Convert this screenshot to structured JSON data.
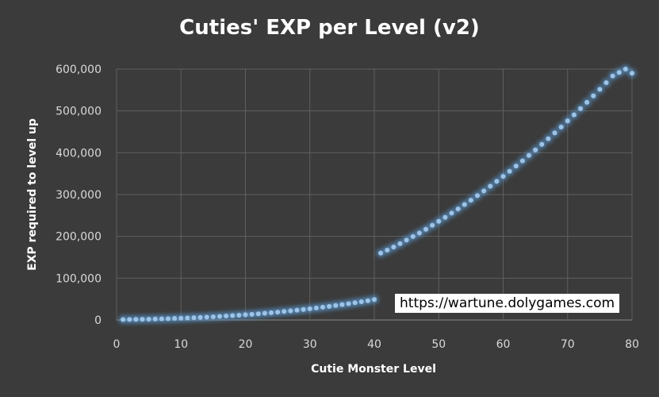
{
  "watermark": "https://wartune.dolygames.com",
  "chart_data": {
    "type": "scatter",
    "title": "Cuties' EXP per Level (v2)",
    "xlabel": "Cutie Monster Level",
    "ylabel": "EXP required to level up",
    "xlim": [
      0,
      80
    ],
    "ylim": [
      0,
      600000
    ],
    "x_ticks": [
      "0",
      "10",
      "20",
      "30",
      "40",
      "50",
      "60",
      "70",
      "80"
    ],
    "y_ticks": [
      "0",
      "100,000",
      "200,000",
      "300,000",
      "400,000",
      "500,000",
      "600,000"
    ],
    "grid": true,
    "legend": "none",
    "marker_color": "#9dc3e6",
    "glow_color": "#5b9bd5",
    "series": [
      {
        "x": [
          1,
          2,
          3,
          4,
          5,
          6,
          7,
          8,
          9,
          10,
          11,
          12,
          13,
          14,
          15,
          16,
          17,
          18,
          19,
          20,
          21,
          22,
          23,
          24,
          25,
          26,
          27,
          28,
          29,
          30,
          31,
          32,
          33,
          34,
          35,
          36,
          37,
          38,
          39,
          40,
          41,
          42,
          43,
          44,
          45,
          46,
          47,
          48,
          49,
          50,
          51,
          52,
          53,
          54,
          55,
          56,
          57,
          58,
          59,
          60,
          61,
          62,
          63,
          64,
          65,
          66,
          67,
          68,
          69,
          70,
          71,
          72,
          73,
          74,
          75,
          76,
          77,
          78,
          79,
          80
        ],
        "values": [
          1000,
          1200,
          1450,
          1700,
          2000,
          2350,
          2750,
          3200,
          3700,
          4200,
          4800,
          5450,
          6150,
          6900,
          7700,
          8550,
          9450,
          10400,
          11400,
          12500,
          13600,
          14800,
          16100,
          17400,
          18800,
          20300,
          21800,
          23400,
          25100,
          26800,
          28600,
          30500,
          32500,
          34600,
          36700,
          38900,
          41200,
          43600,
          46000,
          48800,
          160000,
          167000,
          174500,
          182500,
          191000,
          199500,
          208000,
          217000,
          226500,
          236000,
          245500,
          255500,
          265500,
          276000,
          286500,
          297500,
          308500,
          320000,
          331500,
          343500,
          355500,
          368000,
          380500,
          393500,
          406500,
          420000,
          433500,
          447500,
          461500,
          476000,
          490500,
          505500,
          520500,
          536000,
          551500,
          567500,
          583500,
          592000,
          600000,
          590000
        ]
      }
    ]
  }
}
